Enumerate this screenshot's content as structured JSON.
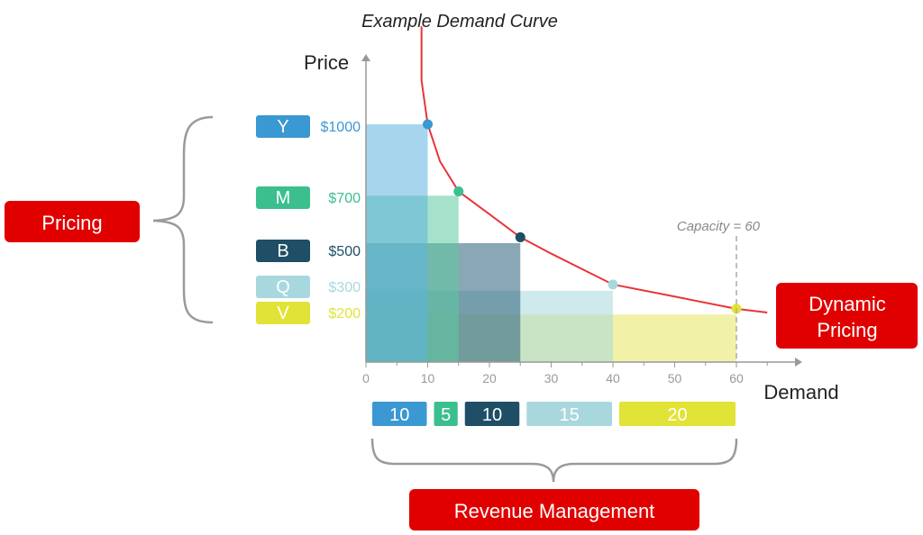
{
  "chart_data": {
    "type": "area",
    "title": "Example Demand Curve",
    "xlabel": "Demand",
    "ylabel": "Price",
    "xlim": [
      0,
      70
    ],
    "x_ticks": [
      0,
      10,
      20,
      30,
      40,
      50,
      60
    ],
    "grid": false,
    "curve": {
      "name": "Demand curve",
      "color": "#e8343a",
      "points": [
        [
          9,
          1200
        ],
        [
          10,
          1000
        ],
        [
          12,
          833
        ],
        [
          15,
          700
        ],
        [
          20,
          600
        ],
        [
          25,
          500
        ],
        [
          30,
          430
        ],
        [
          40,
          300
        ],
        [
          50,
          250
        ],
        [
          60,
          200
        ],
        [
          65,
          185
        ]
      ]
    },
    "fare_classes": [
      {
        "name": "Y",
        "price": 1000,
        "price_label": "$1000",
        "demand": 10,
        "quantity": "10",
        "color": "#3a98d2",
        "block_color": "#5cb2df"
      },
      {
        "name": "M",
        "price": 700,
        "price_label": "$700",
        "demand": 15,
        "quantity": "5",
        "color": "#3cbf8f",
        "block_color": "#5ccba0"
      },
      {
        "name": "B",
        "price": 500,
        "price_label": "$500",
        "demand": 25,
        "quantity": "10",
        "color": "#1f4e66",
        "block_color": "#2a5e78"
      },
      {
        "name": "Q",
        "price": 300,
        "price_label": "$300",
        "demand": 40,
        "quantity": "15",
        "color": "#a8d8dd",
        "block_color": "#a8d8dd"
      },
      {
        "name": "V",
        "price": 200,
        "price_label": "$200",
        "demand": 60,
        "quantity": "20",
        "color": "#e1e336",
        "block_color": "#e6e660"
      }
    ],
    "capacity": {
      "value": 60,
      "label": "Capacity = 60"
    }
  },
  "callouts": {
    "pricing": "Pricing",
    "dynamic_pricing_line1": "Dynamic",
    "dynamic_pricing_line2": "Pricing",
    "revenue_management": "Revenue Management"
  },
  "colors": {
    "callout": "#e00000",
    "axis": "#999999",
    "text": "#333333"
  }
}
